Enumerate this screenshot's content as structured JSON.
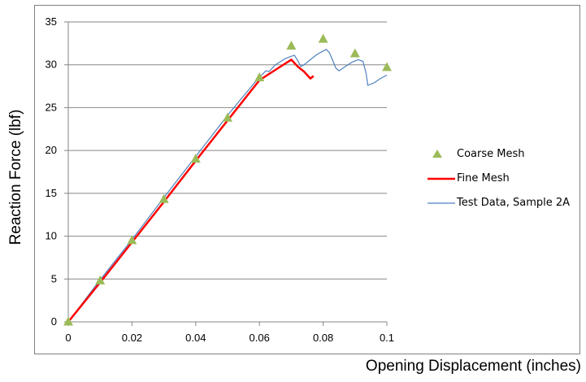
{
  "chart_data": {
    "type": "scatter",
    "title": "",
    "xlabel": "Opening Displacement (inches)",
    "ylabel": "Reaction Force (lbf)",
    "xlim": [
      0,
      0.1
    ],
    "ylim": [
      0,
      35
    ],
    "x_ticks": [
      "0",
      "0.02",
      "0.04",
      "0.06",
      "0.08",
      "0.1"
    ],
    "y_ticks": [
      "0",
      "5",
      "10",
      "15",
      "20",
      "25",
      "30",
      "35"
    ],
    "grid": "horizontal",
    "legend_position": "right",
    "series": [
      {
        "name": "Coarse Mesh",
        "style": "markers",
        "marker": "triangle",
        "color": "#9bbb59",
        "x": [
          0,
          0.01,
          0.02,
          0.03,
          0.04,
          0.05,
          0.06,
          0.07,
          0.08,
          0.09,
          0.1
        ],
        "y": [
          0,
          4.8,
          9.5,
          14.3,
          19.0,
          23.8,
          28.5,
          32.2,
          33.0,
          31.3,
          29.7
        ]
      },
      {
        "name": "Fine Mesh",
        "style": "line",
        "color": "#ff0000",
        "x": [
          0,
          0.01,
          0.02,
          0.03,
          0.04,
          0.05,
          0.06,
          0.065,
          0.07,
          0.072,
          0.074,
          0.076,
          0.077
        ],
        "y": [
          0,
          4.6,
          9.3,
          14.0,
          18.8,
          23.5,
          28.2,
          29.4,
          30.6,
          29.8,
          29.2,
          28.4,
          28.7
        ]
      },
      {
        "name": "Test Data, Sample 2A",
        "style": "line",
        "color": "#4f81bd",
        "x": [
          0,
          0.01,
          0.02,
          0.03,
          0.04,
          0.05,
          0.06,
          0.061,
          0.062,
          0.063,
          0.065,
          0.068,
          0.07,
          0.071,
          0.072,
          0.073,
          0.074,
          0.076,
          0.078,
          0.08,
          0.081,
          0.082,
          0.083,
          0.084,
          0.085,
          0.087,
          0.089,
          0.091,
          0.0925,
          0.0935,
          0.094,
          0.096,
          0.098,
          0.1
        ],
        "y": [
          0,
          4.9,
          9.6,
          14.5,
          19.3,
          24.1,
          28.6,
          28.9,
          29.3,
          29.2,
          30.0,
          30.7,
          31.0,
          31.1,
          30.5,
          29.8,
          30.0,
          30.6,
          31.2,
          31.6,
          31.8,
          31.4,
          30.5,
          29.6,
          29.3,
          29.8,
          30.3,
          30.6,
          30.4,
          29.0,
          27.6,
          27.9,
          28.4,
          28.8
        ]
      }
    ]
  }
}
